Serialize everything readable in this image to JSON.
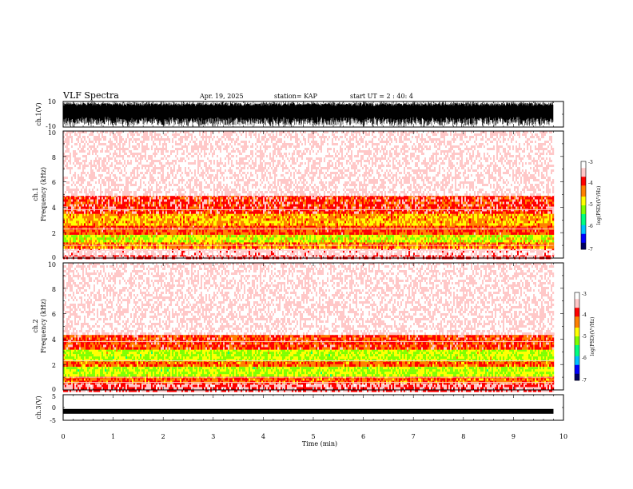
{
  "header": {
    "title": "VLF Spectra",
    "date": "Apr. 19, 2025",
    "station": "station= KAP",
    "start": "start  UT  =   2 : 40: 4"
  },
  "chart_data": [
    {
      "type": "line",
      "name": "ch1-waveform",
      "ylabel": "ch.1(V)",
      "ylim": [
        -10,
        10
      ],
      "yticks": [
        "10",
        "-10"
      ],
      "xlim": [
        0,
        10
      ],
      "data_extent_min": 9.8,
      "description_values": "dense black waveform saturating between about -10 and +10 V"
    },
    {
      "type": "heatmap",
      "name": "ch1-spectrogram",
      "ylabel": "ch.1\nFrequency  (kHz)",
      "ylabel_lines": [
        "ch.1",
        "Frequency  (kHz)"
      ],
      "yticks": [
        "0",
        "2",
        "4",
        "6",
        "8",
        "10"
      ],
      "ylim": [
        0,
        10
      ],
      "xlim": [
        0,
        10
      ],
      "data_extent_min": 9.8,
      "colorbar": {
        "label": "log(PSD)(V²/Hz)",
        "ticks": [
          "-3",
          "-4",
          "-5",
          "-6",
          "-7"
        ],
        "range": [
          -7,
          -3
        ],
        "colors": [
          "#000060",
          "#0000ff",
          "#00c0ff",
          "#00ff80",
          "#80ff00",
          "#ffff00",
          "#ff8000",
          "#ff0000",
          "#ffc0c0",
          "#ffffff"
        ]
      },
      "bands_khz": [
        {
          "from": 0.0,
          "to": 0.3,
          "level": -3.6
        },
        {
          "from": 0.3,
          "to": 0.8,
          "level": -3.3
        },
        {
          "from": 0.8,
          "to": 1.3,
          "level": -4.3
        },
        {
          "from": 1.3,
          "to": 2.0,
          "level": -4.9
        },
        {
          "from": 2.0,
          "to": 2.6,
          "level": -4.1
        },
        {
          "from": 2.6,
          "to": 3.5,
          "level": -4.5
        },
        {
          "from": 3.5,
          "to": 5.0,
          "level": -3.9
        },
        {
          "from": 5.0,
          "to": 10.0,
          "level": -3.2
        }
      ]
    },
    {
      "type": "heatmap",
      "name": "ch2-spectrogram",
      "ylabel": "ch.2\nFrequency  (kHz)",
      "ylabel_lines": [
        "ch.2",
        "Frequency  (kHz)"
      ],
      "yticks": [
        "0",
        "2",
        "4",
        "6",
        "8",
        "10"
      ],
      "ylim": [
        0,
        10
      ],
      "xlim": [
        0,
        10
      ],
      "data_extent_min": 9.8,
      "colorbar": {
        "label": "log(PSD)(V²/Hz)",
        "ticks": [
          "-3",
          "-4",
          "-5",
          "-6",
          "-7"
        ],
        "range": [
          -7,
          -3
        ],
        "colors": [
          "#000060",
          "#0000ff",
          "#00c0ff",
          "#00ff80",
          "#80ff00",
          "#ffff00",
          "#ff8000",
          "#ff0000",
          "#ffc0c0",
          "#ffffff"
        ]
      },
      "bands_khz": [
        {
          "from": 0.0,
          "to": 0.6,
          "level": -3.6
        },
        {
          "from": 0.6,
          "to": 1.1,
          "level": -4.2
        },
        {
          "from": 1.1,
          "to": 2.0,
          "level": -5.0
        },
        {
          "from": 2.0,
          "to": 2.4,
          "level": -4.2
        },
        {
          "from": 2.4,
          "to": 3.2,
          "level": -5.0
        },
        {
          "from": 3.2,
          "to": 4.5,
          "level": -4.0
        },
        {
          "from": 4.5,
          "to": 10.0,
          "level": -3.2
        }
      ]
    },
    {
      "type": "line",
      "name": "ch3-waveform",
      "ylabel": "ch.3(V)",
      "ylim": [
        -5,
        5
      ],
      "yticks": [
        "5",
        "0",
        "-5"
      ],
      "xlim": [
        0,
        10
      ],
      "xlabel": "Time  (min)",
      "xticks": [
        "0",
        "1",
        "2",
        "3",
        "4",
        "5",
        "6",
        "7",
        "8",
        "9",
        "10"
      ],
      "data_extent_min": 9.8,
      "description_values": "thick black band centred near -1.5 V"
    }
  ]
}
